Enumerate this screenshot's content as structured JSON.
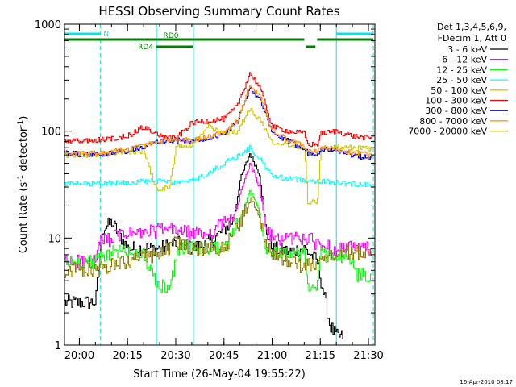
{
  "chart_data": {
    "type": "line",
    "title": "HESSI Observing Summary Count Rates",
    "xlabel": "Start Time (26-May-04 19:55:22)",
    "ylabel": "Count Rate (s⁻¹ detector⁻¹)",
    "xlim": [
      "19:55:22",
      "21:32:00"
    ],
    "ylim": [
      1,
      1000
    ],
    "yscale": "log",
    "x_ticks": [
      "20:00",
      "20:15",
      "20:30",
      "20:45",
      "21:00",
      "21:15",
      "21:30"
    ],
    "y_ticks": [
      "1",
      "10",
      "100",
      "1000"
    ],
    "grid": false,
    "legend_position": "right",
    "legend_header": [
      "Det 1,3,4,5,6,9,",
      "FDecim 1, Att 0"
    ],
    "series": [
      {
        "name": "3 - 6 keV",
        "color": "#000000",
        "points": [
          [
            "19:55:22",
            2.5
          ],
          [
            "20:05:00",
            2.5
          ],
          [
            "20:07:00",
            12
          ],
          [
            "20:10:00",
            14
          ],
          [
            "20:15:00",
            8
          ],
          [
            "20:20:00",
            8
          ],
          [
            "20:25:00",
            8
          ],
          [
            "20:30:00",
            9
          ],
          [
            "20:35:00",
            8
          ],
          [
            "20:40:00",
            9
          ],
          [
            "20:45:00",
            12
          ],
          [
            "20:48:00",
            15
          ],
          [
            "20:50:00",
            35
          ],
          [
            "20:53:00",
            62
          ],
          [
            "20:56:00",
            40
          ],
          [
            "20:58:00",
            12
          ],
          [
            "21:00:00",
            8
          ],
          [
            "21:05:00",
            7.5
          ],
          [
            "21:10:00",
            8
          ],
          [
            "21:14:00",
            6
          ],
          [
            "21:16:00",
            3
          ],
          [
            "21:18:00",
            1.5
          ],
          [
            "21:20:00",
            1.2
          ],
          [
            "21:22:00",
            1.2
          ]
        ]
      },
      {
        "name": "6 - 12 keV",
        "color": "#ff00ff",
        "points": [
          [
            "19:55:22",
            6
          ],
          [
            "20:05:00",
            6
          ],
          [
            "20:06:00",
            9
          ],
          [
            "20:10:00",
            10
          ],
          [
            "20:15:00",
            11
          ],
          [
            "20:20:00",
            11
          ],
          [
            "20:25:00",
            12
          ],
          [
            "20:30:00",
            12
          ],
          [
            "20:35:00",
            11
          ],
          [
            "20:40:00",
            11
          ],
          [
            "20:45:00",
            14
          ],
          [
            "20:48:00",
            16
          ],
          [
            "20:50:00",
            25
          ],
          [
            "20:53:00",
            50
          ],
          [
            "20:56:00",
            30
          ],
          [
            "20:58:00",
            12
          ],
          [
            "21:00:00",
            10
          ],
          [
            "21:05:00",
            10
          ],
          [
            "21:10:00",
            10
          ],
          [
            "21:14:00",
            9
          ],
          [
            "21:18:00",
            8
          ],
          [
            "21:25:00",
            8
          ],
          [
            "21:31:00",
            8
          ]
        ]
      },
      {
        "name": "12 - 25 keV",
        "color": "#00ff00",
        "points": [
          [
            "19:55:22",
            6
          ],
          [
            "20:05:00",
            6
          ],
          [
            "20:10:00",
            7.5
          ],
          [
            "20:15:00",
            7.5
          ],
          [
            "20:20:00",
            7
          ],
          [
            "20:24:00",
            3.5
          ],
          [
            "20:28:00",
            3.5
          ],
          [
            "20:31:00",
            8.5
          ],
          [
            "20:35:00",
            8
          ],
          [
            "20:40:00",
            8
          ],
          [
            "20:45:00",
            8
          ],
          [
            "20:50:00",
            15
          ],
          [
            "20:53:00",
            28
          ],
          [
            "20:56:00",
            18
          ],
          [
            "20:58:00",
            8
          ],
          [
            "21:05:00",
            7
          ],
          [
            "21:10:00",
            7
          ],
          [
            "21:11:00",
            3.5
          ],
          [
            "21:14:00",
            3.5
          ],
          [
            "21:15:00",
            7
          ],
          [
            "21:20:00",
            7
          ],
          [
            "21:25:00",
            6
          ],
          [
            "21:26:00",
            4.5
          ],
          [
            "21:31:00",
            4.5
          ]
        ]
      },
      {
        "name": "25 - 50 keV",
        "color": "#00ffff",
        "points": [
          [
            "19:55:22",
            32
          ],
          [
            "20:05:00",
            32
          ],
          [
            "20:10:00",
            33
          ],
          [
            "20:15:00",
            33
          ],
          [
            "20:20:00",
            34
          ],
          [
            "20:25:00",
            34
          ],
          [
            "20:30:00",
            33
          ],
          [
            "20:35:00",
            34
          ],
          [
            "20:40:00",
            40
          ],
          [
            "20:45:00",
            50
          ],
          [
            "20:50:00",
            60
          ],
          [
            "20:53:00",
            70
          ],
          [
            "20:56:00",
            55
          ],
          [
            "21:00:00",
            38
          ],
          [
            "21:05:00",
            36
          ],
          [
            "21:10:00",
            35
          ],
          [
            "21:15:00",
            34
          ],
          [
            "21:20:00",
            33
          ],
          [
            "21:25:00",
            32
          ],
          [
            "21:31:00",
            32
          ]
        ]
      },
      {
        "name": "50 - 100 keV",
        "color": "#d4c800",
        "points": [
          [
            "19:55:22",
            60
          ],
          [
            "20:05:00",
            60
          ],
          [
            "20:10:00",
            62
          ],
          [
            "20:15:00",
            64
          ],
          [
            "20:20:00",
            65
          ],
          [
            "20:24:00",
            28
          ],
          [
            "20:28:00",
            30
          ],
          [
            "20:30:00",
            70
          ],
          [
            "20:35:00",
            75
          ],
          [
            "20:40:00",
            110
          ],
          [
            "20:45:00",
            95
          ],
          [
            "20:49:00",
            100
          ],
          [
            "20:53:00",
            160
          ],
          [
            "20:56:00",
            130
          ],
          [
            "21:00:00",
            80
          ],
          [
            "21:05:00",
            75
          ],
          [
            "21:10:00",
            70
          ],
          [
            "21:11:00",
            22
          ],
          [
            "21:14:00",
            22
          ],
          [
            "21:15:00",
            68
          ],
          [
            "21:20:00",
            70
          ],
          [
            "21:25:00",
            70
          ],
          [
            "21:31:00",
            68
          ]
        ]
      },
      {
        "name": "100 - 300 keV",
        "color": "#ff0000",
        "points": [
          [
            "19:55:22",
            80
          ],
          [
            "20:05:00",
            82
          ],
          [
            "20:10:00",
            85
          ],
          [
            "20:15:00",
            90
          ],
          [
            "20:20:00",
            110
          ],
          [
            "20:25:00",
            90
          ],
          [
            "20:30:00",
            85
          ],
          [
            "20:35:00",
            120
          ],
          [
            "20:40:00",
            125
          ],
          [
            "20:45:00",
            130
          ],
          [
            "20:49:00",
            170
          ],
          [
            "20:53:00",
            350
          ],
          [
            "20:56:00",
            260
          ],
          [
            "21:00:00",
            110
          ],
          [
            "21:05:00",
            100
          ],
          [
            "21:10:00",
            95
          ],
          [
            "21:11:00",
            75
          ],
          [
            "21:14:00",
            75
          ],
          [
            "21:15:00",
            95
          ],
          [
            "21:20:00",
            100
          ],
          [
            "21:25:00",
            90
          ],
          [
            "21:31:00",
            85
          ]
        ]
      },
      {
        "name": "300 - 800 keV",
        "color": "#0000ff",
        "points": [
          [
            "19:55:22",
            62
          ],
          [
            "20:05:00",
            60
          ],
          [
            "20:10:00",
            62
          ],
          [
            "20:15:00",
            66
          ],
          [
            "20:20:00",
            72
          ],
          [
            "20:25:00",
            80
          ],
          [
            "20:30:00",
            82
          ],
          [
            "20:35:00",
            80
          ],
          [
            "20:40:00",
            85
          ],
          [
            "20:45:00",
            95
          ],
          [
            "20:49:00",
            120
          ],
          [
            "20:53:00",
            260
          ],
          [
            "20:56:00",
            200
          ],
          [
            "21:00:00",
            95
          ],
          [
            "21:05:00",
            80
          ],
          [
            "21:10:00",
            70
          ],
          [
            "21:11:00",
            62
          ],
          [
            "21:14:00",
            62
          ],
          [
            "21:15:00",
            68
          ],
          [
            "21:20:00",
            66
          ],
          [
            "21:25:00",
            60
          ],
          [
            "21:31:00",
            55
          ]
        ]
      },
      {
        "name": "800 - 7000 keV",
        "color": "#ff8c00",
        "points": [
          [
            "19:55:22",
            62
          ],
          [
            "20:05:00",
            62
          ],
          [
            "20:10:00",
            64
          ],
          [
            "20:15:00",
            68
          ],
          [
            "20:20:00",
            74
          ],
          [
            "20:25:00",
            80
          ],
          [
            "20:30:00",
            84
          ],
          [
            "20:35:00",
            82
          ],
          [
            "20:40:00",
            88
          ],
          [
            "20:45:00",
            98
          ],
          [
            "20:49:00",
            125
          ],
          [
            "20:53:00",
            270
          ],
          [
            "20:56:00",
            210
          ],
          [
            "21:00:00",
            98
          ],
          [
            "21:05:00",
            82
          ],
          [
            "21:10:00",
            72
          ],
          [
            "21:11:00",
            65
          ],
          [
            "21:14:00",
            65
          ],
          [
            "21:15:00",
            70
          ],
          [
            "21:20:00",
            68
          ],
          [
            "21:25:00",
            62
          ],
          [
            "21:31:00",
            60
          ]
        ]
      },
      {
        "name": "7000 - 20000 keV",
        "color": "#8b7d00",
        "points": [
          [
            "19:55:22",
            5
          ],
          [
            "20:05:00",
            5
          ],
          [
            "20:10:00",
            5.5
          ],
          [
            "20:15:00",
            6
          ],
          [
            "20:20:00",
            6.5
          ],
          [
            "20:25:00",
            7
          ],
          [
            "20:30:00",
            9
          ],
          [
            "20:35:00",
            8
          ],
          [
            "20:40:00",
            8
          ],
          [
            "20:45:00",
            8
          ],
          [
            "20:50:00",
            14
          ],
          [
            "20:53:00",
            25
          ],
          [
            "20:56:00",
            16
          ],
          [
            "20:58:00",
            8
          ],
          [
            "21:05:00",
            6
          ],
          [
            "21:10:00",
            5.5
          ],
          [
            "21:15:00",
            6
          ],
          [
            "21:20:00",
            7
          ],
          [
            "21:25:00",
            7.5
          ],
          [
            "21:31:00",
            7
          ]
        ]
      }
    ],
    "state_bars": [
      {
        "label": "N",
        "color": "#00e5e5",
        "segments": [
          [
            "19:55:22",
            "20:06:30"
          ],
          [
            "21:20:00",
            "21:31:30"
          ]
        ],
        "level": "top"
      },
      {
        "label": "RD0",
        "color": "#008000",
        "segments": [
          [
            "19:55:22",
            "21:10:00"
          ],
          [
            "21:14:00",
            "21:31:30"
          ]
        ],
        "level": "middle"
      },
      {
        "label": "RD4",
        "color": "#008000",
        "segments": [
          [
            "20:24:00",
            "20:35:30"
          ],
          [
            "21:10:30",
            "21:13:30"
          ]
        ],
        "level": "bottom"
      }
    ],
    "vertical_markers": [
      {
        "color": "#00e5e5",
        "style": "dashed",
        "time": "20:06:30"
      },
      {
        "color": "#00e5e5",
        "style": "solid",
        "time": "20:24:00"
      },
      {
        "color": "#00e5e5",
        "style": "solid",
        "time": "20:35:30"
      },
      {
        "color": "#00e5e5",
        "style": "solid",
        "time": "21:20:00"
      },
      {
        "color": "#00e5e5",
        "style": "dashed",
        "time": "21:31:30"
      }
    ]
  },
  "footer": {
    "timestamp": "16-Apr-2010 08:17"
  }
}
